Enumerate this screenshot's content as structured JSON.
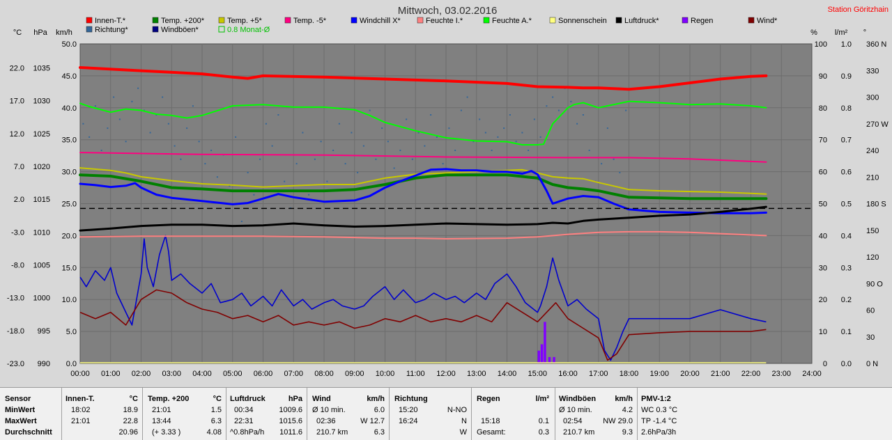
{
  "chart_data": {
    "type": "line",
    "title": "Mittwoch, 03.02.2016",
    "station": "Station Göritzhain",
    "legend": [
      {
        "name": "Innen-T.*",
        "color": "#ff0000"
      },
      {
        "name": "Temp. +200*",
        "color": "#008000"
      },
      {
        "name": "Temp. +5*",
        "color": "#c8c800"
      },
      {
        "name": "Temp. -5*",
        "color": "#ff0080"
      },
      {
        "name": "Windchill X*",
        "color": "#0000ff"
      },
      {
        "name": "Feuchte I.*",
        "color": "#ff8080"
      },
      {
        "name": "Feuchte A.*",
        "color": "#00ff00"
      },
      {
        "name": "Sonnenschein",
        "color": "#ffff80"
      },
      {
        "name": "Luftdruck*",
        "color": "#000000"
      },
      {
        "name": "Regen",
        "color": "#8000ff"
      },
      {
        "name": "Wind*",
        "color": "#800000"
      },
      {
        "name": "Richtung*",
        "color": "#336699"
      },
      {
        "name": "Windböen*",
        "color": "#000080"
      },
      {
        "name": "0.8 Monat-Ø",
        "color": "#00c000"
      }
    ],
    "axis_units": {
      "temp": "°C",
      "pressure": "hPa",
      "speed": "km/h",
      "humidity": "%",
      "rain": "l/m²",
      "direction": "°"
    },
    "temp_ticks": [
      "22.0",
      "17.0",
      "12.0",
      "7.0",
      "2.0",
      "-3.0",
      "-8.0",
      "-13.0",
      "-18.0",
      "-23.0"
    ],
    "pressure_ticks": [
      "1035",
      "1030",
      "1025",
      "1020",
      "1015",
      "1010",
      "1005",
      "1000",
      "995",
      "990"
    ],
    "speed_ticks": [
      "50.0",
      "45.0",
      "40.0",
      "35.0",
      "30.0",
      "25.0",
      "20.0",
      "15.0",
      "10.0",
      "5.0",
      "0.0"
    ],
    "humidity_ticks": [
      "100",
      "90",
      "80",
      "70",
      "60",
      "50",
      "40",
      "30",
      "20",
      "10",
      "0"
    ],
    "rain_ticks": [
      "1.0",
      "0.9",
      "0.8",
      "0.7",
      "0.6",
      "0.5",
      "0.4",
      "0.3",
      "0.2",
      "0.1",
      "0.0"
    ],
    "direction_ticks": [
      "360 N",
      "330",
      "300",
      "270 W",
      "240",
      "210",
      "180 S",
      "150",
      "120",
      "90 O",
      "60",
      "30",
      "0 N"
    ],
    "x_ticks": [
      "00:00",
      "01:00",
      "02:00",
      "03:00",
      "04:00",
      "05:00",
      "06:00",
      "07:00",
      "08:00",
      "09:00",
      "10:00",
      "11:00",
      "12:00",
      "13:00",
      "14:00",
      "15:00",
      "16:00",
      "17:00",
      "18:00",
      "19:00",
      "20:00",
      "21:00",
      "22:00",
      "23:00",
      "24:00"
    ],
    "x_range_h": [
      0,
      24
    ],
    "speed_range": [
      0,
      50
    ],
    "series": [
      {
        "name": "Innen-T.*",
        "color": "#ff0000",
        "width": 4,
        "unit": "km/h",
        "x": [
          0,
          2,
          4,
          5,
          5.5,
          6,
          8,
          10,
          12,
          14,
          15,
          16,
          16.5,
          17,
          17.5,
          18,
          19,
          20,
          21,
          22,
          22.5
        ],
        "values": [
          46.3,
          45.8,
          45.3,
          44.8,
          44.6,
          45.0,
          44.8,
          44.5,
          44.2,
          43.8,
          43.3,
          43.2,
          43.1,
          43.1,
          43.0,
          42.9,
          43.3,
          43.9,
          44.5,
          44.9,
          45.0
        ]
      },
      {
        "name": "Feuchte A.*",
        "color": "#00ff00",
        "width": 2,
        "unit": "km/h",
        "x": [
          0,
          0.3,
          1,
          1.5,
          2,
          2.5,
          3,
          3.5,
          4,
          5,
          6,
          7,
          8,
          9,
          9.5,
          10,
          11,
          12,
          13,
          14,
          14.5,
          15,
          15.2,
          15.5,
          16,
          16.2,
          16.5,
          17,
          17.3,
          18,
          19,
          20,
          21,
          22,
          22.5
        ],
        "values": [
          40.7,
          40.2,
          39.3,
          39.8,
          39.6,
          39.0,
          38.8,
          38.4,
          38.8,
          40.3,
          40.5,
          40.1,
          40.1,
          39.7,
          38.8,
          37.7,
          36.4,
          35.3,
          34.8,
          34.7,
          34.2,
          34.2,
          34.3,
          37.5,
          40.0,
          40.5,
          40.8,
          40.0,
          40.3,
          41.0,
          40.8,
          40.5,
          40.6,
          40.3,
          40.0
        ]
      },
      {
        "name": "Temp. -5*",
        "color": "#ff0080",
        "width": 2,
        "unit": "km/h",
        "x": [
          0,
          4,
          8,
          12,
          16,
          18,
          20,
          22.5
        ],
        "values": [
          33.0,
          32.7,
          32.6,
          32.3,
          32.2,
          32.2,
          32.0,
          31.5
        ]
      },
      {
        "name": "Temp. +5*",
        "color": "#c8c800",
        "width": 2,
        "unit": "km/h",
        "x": [
          0,
          1,
          1.5,
          2,
          3,
          4,
          5,
          6,
          7,
          8,
          9,
          9.5,
          10,
          11,
          12,
          13,
          14,
          14.5,
          15,
          15.5,
          16,
          16.5,
          17,
          18,
          19,
          20,
          21,
          22,
          22.5
        ],
        "values": [
          30.6,
          30.2,
          29.8,
          29.2,
          28.6,
          28.1,
          27.9,
          27.6,
          27.8,
          28.0,
          28.0,
          28.5,
          29.0,
          29.6,
          29.8,
          30.0,
          30.2,
          30.3,
          29.8,
          29.2,
          29.0,
          28.9,
          28.3,
          27.2,
          27.0,
          26.9,
          26.8,
          26.6,
          26.5
        ]
      },
      {
        "name": "Temp. +200*",
        "color": "#008000",
        "width": 4,
        "unit": "km/h",
        "x": [
          0,
          1,
          2,
          3,
          4,
          5,
          6,
          7,
          8,
          9,
          10,
          11,
          12,
          13,
          14,
          15,
          15.5,
          16,
          16.5,
          17,
          18,
          19,
          20,
          21,
          22,
          22.5
        ],
        "values": [
          29.5,
          29.3,
          28.5,
          27.5,
          27.3,
          27.0,
          27.0,
          27.0,
          27.0,
          27.2,
          28.0,
          29.0,
          29.5,
          29.5,
          29.5,
          29.0,
          28.0,
          27.5,
          27.3,
          27.0,
          26.0,
          25.9,
          25.8,
          25.8,
          25.8,
          25.8
        ]
      },
      {
        "name": "Windchill X*",
        "color": "#0000ff",
        "width": 3,
        "unit": "km/h",
        "x": [
          0,
          0.5,
          1,
          1.5,
          1.8,
          2,
          2.5,
          3,
          4,
          5,
          5.5,
          6,
          6.5,
          7,
          8,
          9,
          9.5,
          10,
          10.5,
          11,
          11.5,
          12,
          12.5,
          13,
          13.5,
          14,
          14.5,
          14.8,
          15,
          15.3,
          15.5,
          16,
          16.5,
          17,
          17.5,
          18,
          18.5,
          19,
          20,
          21,
          22,
          22.5
        ],
        "values": [
          28.1,
          27.9,
          27.6,
          27.8,
          28.2,
          27.5,
          26.4,
          25.9,
          25.4,
          24.9,
          25.1,
          25.8,
          26.5,
          26.0,
          25.3,
          25.5,
          26.2,
          27.5,
          28.5,
          29.4,
          30.3,
          30.4,
          30.2,
          30.2,
          30.0,
          30.0,
          29.7,
          30.1,
          29.6,
          27.0,
          25.0,
          25.8,
          26.2,
          26.0,
          25.0,
          24.1,
          23.9,
          23.7,
          23.6,
          23.5,
          23.5,
          23.6
        ]
      },
      {
        "name": "Luftdruck*",
        "color": "#000000",
        "width": 3,
        "unit": "km/h",
        "x": [
          0,
          1,
          2,
          3,
          4,
          5,
          6,
          7,
          8,
          9,
          10,
          11,
          12,
          13,
          14,
          15,
          15.5,
          16,
          16.5,
          17,
          18,
          19,
          20,
          21,
          22,
          22.5
        ],
        "values": [
          20.8,
          21.1,
          21.5,
          21.7,
          21.7,
          21.5,
          21.6,
          21.9,
          21.6,
          21.4,
          21.5,
          21.7,
          21.9,
          21.8,
          21.7,
          21.8,
          22.0,
          21.9,
          22.3,
          22.5,
          22.8,
          23.1,
          23.3,
          23.7,
          24.2,
          24.5
        ]
      },
      {
        "name": "Feuchte I.*",
        "color": "#ff8080",
        "width": 2,
        "unit": "km/h",
        "x": [
          0,
          2,
          4,
          6,
          8,
          10,
          11,
          12,
          14,
          15,
          16,
          17,
          18,
          19,
          20,
          21,
          22.5
        ],
        "values": [
          19.8,
          19.9,
          19.9,
          19.9,
          19.8,
          19.6,
          19.6,
          19.5,
          19.6,
          19.8,
          20.2,
          20.5,
          20.6,
          20.6,
          20.5,
          20.3,
          20.0
        ]
      }
    ],
    "dashed_lines": [
      {
        "name": "0.8 Monat-Ø",
        "color": "#000000",
        "humidity_value": 48.5
      }
    ],
    "wind_series": [
      {
        "name": "Windböen*",
        "color": "#0000cc",
        "x": [
          0,
          0.2,
          0.5,
          0.8,
          1,
          1.2,
          1.5,
          1.7,
          2,
          2.1,
          2.2,
          2.4,
          2.6,
          2.8,
          2.9,
          3,
          3.3,
          3.6,
          4,
          4.3,
          4.6,
          5,
          5.3,
          5.6,
          6,
          6.3,
          6.6,
          7,
          7.3,
          7.6,
          8,
          8.3,
          8.6,
          9,
          9.3,
          9.6,
          10,
          10.3,
          10.6,
          11,
          11.3,
          11.6,
          12,
          12.3,
          12.6,
          13,
          13.3,
          13.6,
          14,
          14.3,
          14.6,
          15,
          15.1,
          15.3,
          15.5,
          15.7,
          16,
          16.3,
          16.6,
          17,
          17.2,
          17.4,
          17.6,
          17.8,
          18,
          18.5,
          19,
          20,
          21,
          22,
          22.5
        ],
        "values": [
          13.5,
          12.0,
          14.5,
          13.0,
          15.0,
          11.0,
          8.0,
          6.0,
          14.0,
          19.5,
          15.0,
          12.0,
          17.0,
          20.0,
          17.5,
          13.0,
          14.0,
          12.5,
          11.0,
          12.5,
          9.5,
          10.0,
          11.0,
          9.0,
          10.5,
          9.0,
          11.5,
          9.0,
          10.0,
          8.5,
          9.5,
          10.0,
          9.0,
          8.5,
          9.0,
          10.5,
          12.0,
          10.0,
          11.5,
          9.5,
          10.0,
          11.0,
          10.0,
          10.5,
          9.5,
          11.0,
          10.0,
          12.5,
          14.0,
          12.0,
          9.5,
          8.0,
          9.0,
          12.0,
          16.5,
          13.0,
          9.0,
          10.0,
          8.5,
          7.0,
          2.0,
          0.5,
          2.5,
          5.0,
          7.0,
          7.0,
          7.0,
          7.0,
          8.4,
          7.0,
          6.5
        ]
      },
      {
        "name": "Wind*",
        "color": "#800000",
        "x": [
          0,
          0.5,
          1,
          1.5,
          2,
          2.5,
          3,
          3.5,
          4,
          4.5,
          5,
          5.5,
          6,
          6.5,
          7,
          7.5,
          8,
          8.5,
          9,
          9.5,
          10,
          10.5,
          11,
          11.5,
          12,
          12.5,
          13,
          13.5,
          14,
          14.5,
          15,
          15.3,
          15.6,
          16,
          16.5,
          17,
          17.3,
          17.6,
          18,
          19,
          20,
          21,
          22,
          22.5
        ],
        "values": [
          8.0,
          7.0,
          8.0,
          6.0,
          10.0,
          11.5,
          11.0,
          9.5,
          8.5,
          8.0,
          7.0,
          7.5,
          6.5,
          7.5,
          6.0,
          6.5,
          6.0,
          6.5,
          5.5,
          6.0,
          7.0,
          6.5,
          7.5,
          6.5,
          7.0,
          6.5,
          7.5,
          6.5,
          9.5,
          8.0,
          6.5,
          8.0,
          9.5,
          7.0,
          5.5,
          4.0,
          0.5,
          1.5,
          4.5,
          4.8,
          5.0,
          5.0,
          5.0,
          5.3
        ]
      }
    ],
    "rain_bars": {
      "color": "#8000ff",
      "unit": "l/m²",
      "x": [
        15.05,
        15.15,
        15.25,
        15.4,
        15.55
      ],
      "values": [
        0.04,
        0.06,
        0.13,
        0.02,
        0.02
      ]
    },
    "direction_points": {
      "color": "#336699",
      "unit": "°",
      "x": [
        0.1,
        0.3,
        0.5,
        0.7,
        0.9,
        1.1,
        1.3,
        1.5,
        1.7,
        1.9,
        2.1,
        2.3,
        2.5,
        2.7,
        2.9,
        3.1,
        3.3,
        3.5,
        3.7,
        3.9,
        4.1,
        4.3,
        4.5,
        4.7,
        4.9,
        5.1,
        5.3,
        5.5,
        5.7,
        5.9,
        6.1,
        6.3,
        6.5,
        6.7,
        6.9,
        7.1,
        7.3,
        7.5,
        7.7,
        7.9,
        8.1,
        8.3,
        8.5,
        8.7,
        8.9,
        9.1,
        9.3,
        9.5,
        9.7,
        9.9,
        10.1,
        10.3,
        10.5,
        10.7,
        10.9,
        11.1,
        11.3,
        11.5,
        11.7,
        11.9,
        12.1,
        12.3,
        12.5,
        12.7,
        12.9,
        13.1,
        13.3,
        13.5,
        13.7,
        13.9,
        14.1,
        14.3,
        14.5,
        14.7,
        14.9,
        15.1,
        15.3,
        15.5,
        15.7,
        15.9,
        16.1,
        16.3,
        16.5,
        16.7,
        16.9,
        17.1,
        17.3,
        17.5,
        17.7,
        17.9
      ],
      "values": [
        270,
        255,
        290,
        240,
        265,
        300,
        275,
        250,
        295,
        310,
        285,
        260,
        280,
        300,
        270,
        245,
        230,
        265,
        290,
        250,
        225,
        240,
        210,
        235,
        200,
        255,
        160,
        215,
        190,
        230,
        270,
        245,
        280,
        205,
        175,
        225,
        260,
        190,
        230,
        250,
        205,
        240,
        270,
        225,
        260,
        215,
        245,
        285,
        230,
        265,
        250,
        220,
        240,
        275,
        230,
        260,
        245,
        280,
        255,
        225,
        265,
        240,
        285,
        300,
        250,
        275,
        260,
        240,
        255,
        265,
        280,
        250,
        260,
        240,
        275,
        255,
        290,
        300,
        285,
        310,
        295,
        270,
        280,
        240,
        205,
        225,
        265,
        230,
        215,
        285
      ]
    },
    "legend_extra_label": "0.8 Monat-Ø"
  },
  "table": {
    "sensor": {
      "header": "Sensor",
      "rows": [
        "MinWert",
        "MaxWert",
        "Durchschnitt"
      ]
    },
    "innen": {
      "header": "Innen-T.",
      "unit": "°C",
      "rows": [
        [
          "18:02",
          "18.9"
        ],
        [
          "21:01",
          "22.8"
        ],
        [
          "",
          "20.96"
        ]
      ]
    },
    "temp200": {
      "header": "Temp. +200",
      "unit": "°C",
      "rows": [
        [
          "21:01",
          "1.5"
        ],
        [
          "13:44",
          "6.3"
        ],
        [
          "(+ 3.33 )",
          "4.08"
        ]
      ]
    },
    "druck": {
      "header": "Luftdruck",
      "unit": "hPa",
      "rows": [
        [
          "00:34",
          "1009.6"
        ],
        [
          "22:31",
          "1015.6"
        ],
        [
          "^0.8hPa/h",
          "1011.6"
        ]
      ]
    },
    "wind": {
      "header": "Wind",
      "unit": "km/h",
      "rows": [
        [
          "Ø 10 min.",
          "6.0"
        ],
        [
          "02:36",
          "W 12.7"
        ],
        [
          "210.7 km",
          "6.3"
        ]
      ]
    },
    "richtung": {
      "header": "Richtung",
      "rows": [
        [
          "15:20",
          "N-NO"
        ],
        [
          "16:24",
          "N"
        ],
        [
          "",
          "W"
        ]
      ]
    },
    "regen": {
      "header": "Regen",
      "unit": "l/m²",
      "rows": [
        [
          "",
          ""
        ],
        [
          "15:18",
          "0.1"
        ],
        [
          "Gesamt:",
          "0.3"
        ]
      ]
    },
    "boeen": {
      "header": "Windböen",
      "unit": "km/h",
      "rows": [
        [
          "Ø 10 min.",
          "4.2"
        ],
        [
          "02:54",
          "NW 29.0"
        ],
        [
          "210.7 km",
          "9.3"
        ]
      ]
    },
    "pmv": {
      "header": "PMV-1:2",
      "rows": [
        "WC 0.3 °C",
        "TP -1.4 °C",
        "2.6hPa/3h"
      ]
    }
  }
}
